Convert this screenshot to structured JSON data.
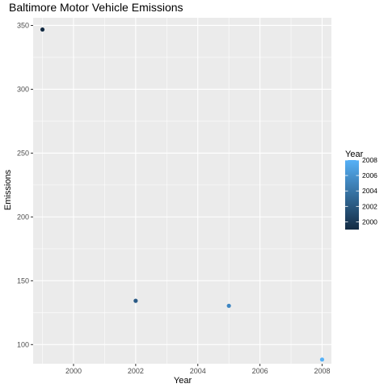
{
  "chart_data": {
    "type": "scatter",
    "title": "Baltimore Motor Vehicle Emissions",
    "xlabel": "Year",
    "ylabel": "Emissions",
    "xlim": [
      1998.7,
      2008.3
    ],
    "ylim": [
      85,
      356
    ],
    "x_ticks": [
      2000,
      2002,
      2004,
      2006,
      2008
    ],
    "y_ticks": [
      100,
      150,
      200,
      250,
      300,
      350
    ],
    "grid": true,
    "points": [
      {
        "x": 1999,
        "y": 346.8,
        "color": "#132b43"
      },
      {
        "x": 2002,
        "y": 134.3,
        "color": "#2a5a86"
      },
      {
        "x": 2005,
        "y": 130.4,
        "color": "#3e86c2"
      },
      {
        "x": 2008,
        "y": 88.3,
        "color": "#56b1f7"
      }
    ],
    "legend": {
      "title": "Year",
      "placement": "right",
      "color_low": "#132b43",
      "color_high": "#56b1f7",
      "range": [
        1999,
        2008
      ],
      "ticks": [
        2000,
        2002,
        2004,
        2006,
        2008
      ]
    },
    "panel_background": "#ebebeb",
    "grid_color": "#ffffff"
  }
}
